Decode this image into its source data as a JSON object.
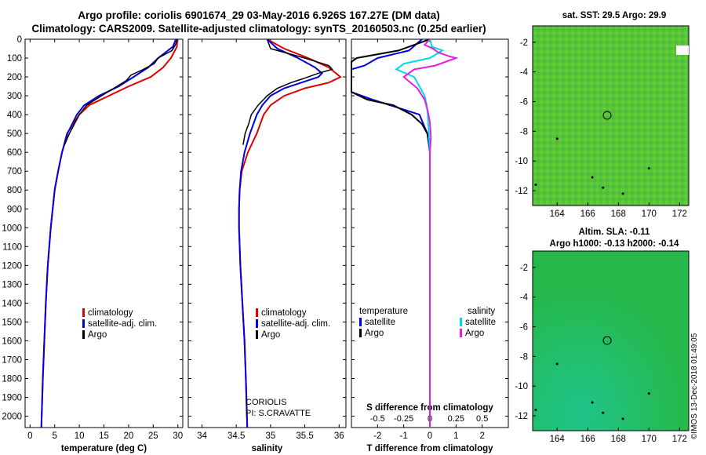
{
  "header": {
    "title_line1": "Argo profile: coriolis 6901674_29 03-May-2016 6.926S 167.27E (DM data)",
    "title_line2": "Climatology: CARS2009. Satellite-adjusted climatology: synTS_20160503.nc (0.25d earlier)"
  },
  "colors": {
    "climatology": "#e00000",
    "satellite": "#0000e0",
    "argo": "#000000",
    "sat_salinity": "#00d8e8",
    "argo_salinity": "#e020e0"
  },
  "depth_axis": {
    "ticks": [
      0,
      100,
      200,
      300,
      400,
      500,
      600,
      700,
      800,
      900,
      1000,
      1100,
      1200,
      1300,
      1400,
      1500,
      1600,
      1700,
      1800,
      1900,
      2000
    ],
    "max": 2060
  },
  "chart_data": [
    {
      "type": "line",
      "xlabel": "temperature (deg C)",
      "xlim": [
        -1,
        31
      ],
      "xticks": [
        0,
        5,
        10,
        15,
        20,
        25,
        30
      ],
      "legend": [
        "climatology",
        "satellite-adj. clim.",
        "Argo"
      ],
      "series": [
        {
          "name": "climatology",
          "depth": [
            0,
            40,
            100,
            150,
            200,
            250,
            300,
            350,
            400,
            500,
            600,
            700,
            800,
            900,
            1000,
            1100,
            1200,
            1400,
            1600,
            1800,
            2060
          ],
          "values": [
            29.9,
            29.8,
            28.6,
            27.0,
            24.5,
            20.0,
            16.0,
            12.0,
            10.0,
            7.5,
            6.5,
            5.7,
            5.0,
            4.6,
            4.2,
            3.9,
            3.6,
            3.2,
            2.9,
            2.6,
            2.3
          ]
        },
        {
          "name": "satellite-adj. clim.",
          "depth": [
            0,
            40,
            100,
            150,
            200,
            250,
            300,
            350,
            400,
            500,
            600,
            700,
            800,
            900,
            1000,
            1100,
            1200,
            1400,
            1600,
            1800,
            2060
          ],
          "values": [
            29.6,
            29.0,
            26.0,
            24.0,
            21.0,
            18.0,
            14.0,
            11.0,
            9.5,
            7.6,
            6.5,
            5.7,
            5.0,
            4.6,
            4.2,
            3.9,
            3.6,
            3.2,
            2.9,
            2.6,
            2.3
          ]
        },
        {
          "name": "Argo",
          "depth": [
            0,
            30,
            60,
            100,
            130,
            160,
            190,
            220,
            260,
            300,
            350,
            400,
            450,
            500,
            560
          ],
          "values": [
            29.9,
            29.5,
            28.8,
            26.0,
            25.2,
            23.0,
            20.5,
            19.5,
            17.0,
            14.5,
            11.5,
            10.0,
            9.0,
            8.0,
            7.0
          ]
        }
      ]
    },
    {
      "type": "line",
      "xlabel": "salinity",
      "xlim": [
        33.8,
        36.1
      ],
      "xticks": [
        34,
        34.5,
        35,
        35.5,
        36
      ],
      "legend": [
        "climatology",
        "satellite-adj. clim.",
        "Argo"
      ],
      "annotation": [
        "CORIOLIS",
        "PI: S.CRAVATTE"
      ],
      "series": [
        {
          "name": "climatology",
          "depth": [
            0,
            50,
            100,
            150,
            200,
            230,
            260,
            300,
            350,
            400,
            500,
            600,
            700,
            800,
            900,
            1000,
            1200,
            1400,
            1600,
            1800,
            2060
          ],
          "values": [
            34.95,
            35.2,
            35.55,
            35.85,
            36.02,
            35.85,
            35.5,
            35.2,
            35.0,
            34.9,
            34.8,
            34.67,
            34.58,
            34.55,
            34.54,
            34.54,
            34.56,
            34.59,
            34.62,
            34.64,
            34.66
          ]
        },
        {
          "name": "satellite-adj. clim.",
          "depth": [
            0,
            50,
            100,
            150,
            180,
            200,
            230,
            260,
            300,
            350,
            400,
            500,
            600,
            700,
            800,
            900,
            1000,
            1200,
            1400,
            1600,
            1800,
            2060
          ],
          "values": [
            34.95,
            35.1,
            35.4,
            35.65,
            35.75,
            35.7,
            35.45,
            35.2,
            35.0,
            34.88,
            34.8,
            34.7,
            34.62,
            34.57,
            34.55,
            34.54,
            34.54,
            34.56,
            34.59,
            34.62,
            34.64,
            34.66
          ]
        },
        {
          "name": "Argo",
          "depth": [
            0,
            50,
            100,
            140,
            160,
            180,
            200,
            230,
            260,
            300,
            350,
            400,
            450,
            500,
            560
          ],
          "values": [
            34.95,
            35.0,
            35.5,
            35.85,
            35.9,
            35.7,
            35.55,
            35.3,
            35.1,
            34.95,
            34.82,
            34.72,
            34.68,
            34.63,
            34.6
          ]
        }
      ]
    },
    {
      "type": "line",
      "xlabel": "T difference from climatology",
      "xlabel_top": "S difference from climatology",
      "xlim": [
        -3,
        3
      ],
      "xticks": [
        -2,
        -1,
        0,
        1,
        2
      ],
      "xticks_top": [
        "-0.5",
        "-0.25",
        "0",
        "0.25",
        "0.5"
      ],
      "legend_temperature": [
        "temperature",
        "satellite",
        "Argo"
      ],
      "legend_salinity": [
        "salinity",
        "satellite",
        "Argo"
      ],
      "series": [
        {
          "name": "T satellite",
          "depth": [
            0,
            60,
            100,
            140,
            160,
            200,
            240,
            280,
            320,
            400,
            500,
            600,
            700,
            800,
            900,
            1000,
            1200,
            1400,
            1600,
            1800,
            2060
          ],
          "values": [
            -0.3,
            -0.8,
            -2.0,
            -2.5,
            -3.0,
            -3.0,
            -3.0,
            -3.0,
            -2.2,
            -0.4,
            -0.1,
            0,
            0,
            0,
            0,
            0,
            0,
            0,
            0,
            0,
            0
          ]
        },
        {
          "name": "T Argo",
          "depth": [
            0,
            30,
            60,
            100,
            120,
            150,
            180,
            230,
            280,
            320,
            350,
            400,
            450,
            500,
            560
          ],
          "values": [
            0,
            -0.6,
            -1.2,
            -2.8,
            -3.0,
            -3.0,
            -3.0,
            -3.0,
            -3.0,
            -2.4,
            -1.4,
            -0.7,
            -0.3,
            -0.1,
            0
          ]
        },
        {
          "name": "S satellite",
          "depth": [
            0,
            40,
            60,
            100,
            130,
            160,
            200,
            250,
            300,
            350,
            400,
            500,
            600,
            700,
            800,
            900,
            1000,
            1200,
            1400,
            1600,
            1800,
            2060
          ],
          "values": [
            0.0,
            0.02,
            0.12,
            0.0,
            -0.25,
            -0.32,
            -0.15,
            -0.1,
            -0.05,
            -0.03,
            -0.02,
            -0.01,
            0,
            0,
            0,
            0,
            0,
            0,
            0,
            0,
            0,
            0
          ]
        },
        {
          "name": "S Argo",
          "depth": [
            0,
            30,
            50,
            70,
            90,
            100,
            140,
            160,
            200,
            260,
            320,
            380,
            440,
            520,
            600,
            700,
            800,
            900,
            1000,
            1200,
            1400,
            1600,
            1800,
            2060
          ],
          "values": [
            0.0,
            -0.05,
            0.03,
            0.08,
            0.18,
            0.25,
            0.05,
            -0.15,
            -0.25,
            -0.12,
            -0.05,
            -0.02,
            0.0,
            0.01,
            0.0,
            0,
            0,
            0,
            0,
            0,
            0,
            0,
            0,
            0
          ]
        }
      ]
    },
    {
      "type": "heatmap",
      "title": "sat. SST: 29.5 Argo: 29.9",
      "xticks": [
        164,
        166,
        168,
        170,
        172
      ],
      "yticks": [
        -2,
        -4,
        -6,
        -8,
        -10,
        -12
      ],
      "xlim": [
        162.4,
        172.6
      ],
      "ylim": [
        -13.0,
        -0.9
      ],
      "marker": {
        "lon": 167.27,
        "lat": -6.926
      }
    },
    {
      "type": "heatmap",
      "title": "Altim. SLA: -0.11",
      "subtitle": "Argo h1000: -0.13 h2000: -0.14",
      "xticks": [
        164,
        166,
        168,
        170,
        172
      ],
      "yticks": [
        -2,
        -4,
        -6,
        -8,
        -10,
        -12
      ],
      "xlim": [
        162.4,
        172.6
      ],
      "ylim": [
        -13.0,
        -0.9
      ],
      "marker": {
        "lon": 167.27,
        "lat": -6.926
      }
    }
  ],
  "credit": "©IMOS 13-Dec-2018 01:49:05"
}
